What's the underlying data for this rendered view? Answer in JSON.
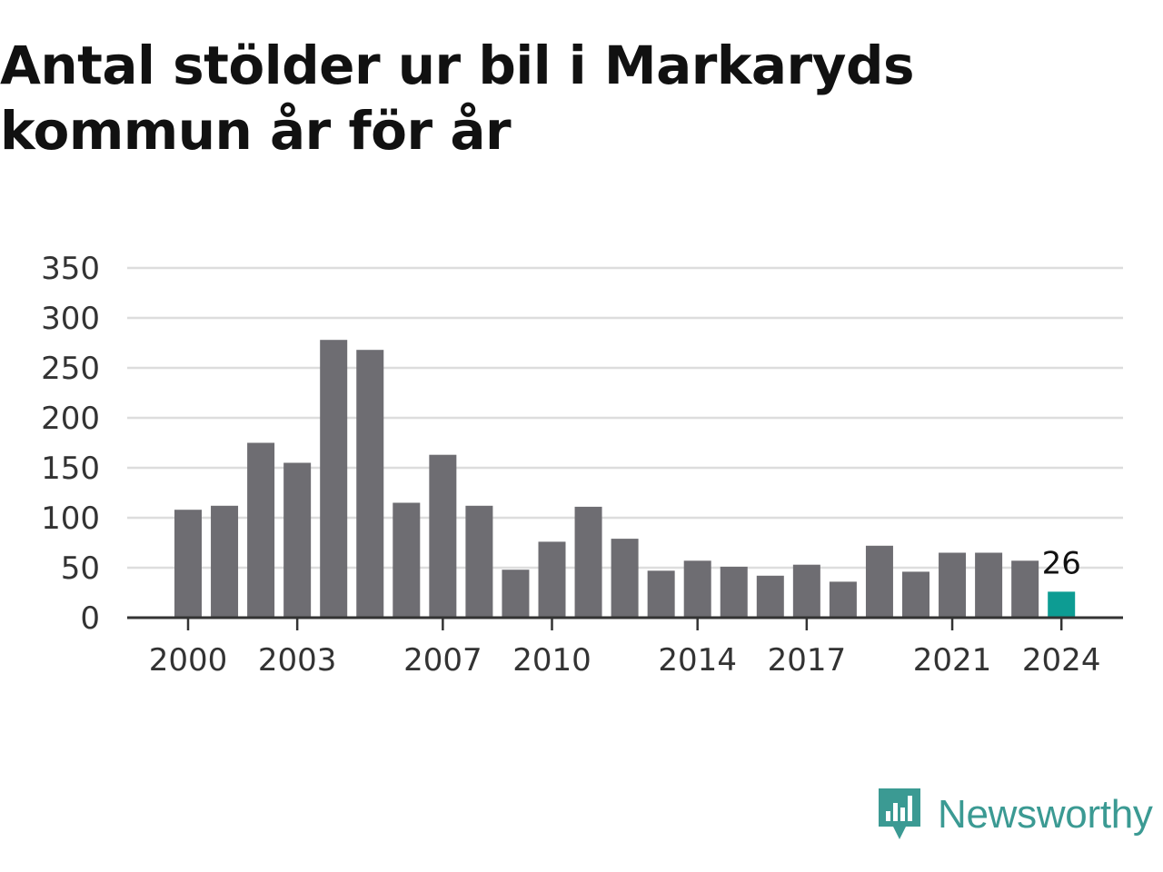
{
  "title": "Antal stölder ur bil i Markaryds kommun år för år",
  "brand": {
    "name": "Newsworthy",
    "icon": "newsworthy-logo-icon",
    "color": "#3b9a93"
  },
  "colors": {
    "bar": "#6e6d72",
    "highlight": "#0d9c93",
    "grid": "#dddddd",
    "axis": "#333333"
  },
  "chart_data": {
    "type": "bar",
    "title": "Antal stölder ur bil i Markaryds kommun år för år",
    "xlabel": "",
    "ylabel": "",
    "categories": [
      "2000",
      "2001",
      "2002",
      "2003",
      "2004",
      "2005",
      "2006",
      "2007",
      "2008",
      "2009",
      "2010",
      "2011",
      "2012",
      "2013",
      "2014",
      "2015",
      "2016",
      "2017",
      "2018",
      "2019",
      "2020",
      "2021",
      "2022",
      "2023",
      "2024"
    ],
    "values": [
      108,
      112,
      175,
      155,
      278,
      268,
      115,
      163,
      112,
      48,
      76,
      111,
      79,
      47,
      57,
      51,
      42,
      53,
      36,
      72,
      46,
      65,
      65,
      57,
      26
    ],
    "ylim": [
      0,
      350
    ],
    "yticks": [
      "0",
      "50",
      "100",
      "150",
      "200",
      "250",
      "300",
      "350"
    ],
    "xticks": [
      "2000",
      "2003",
      "2007",
      "2010",
      "2014",
      "2017",
      "2021",
      "2024"
    ],
    "highlight_category": "2024",
    "annotations": [
      {
        "category": "2024",
        "text": "26"
      }
    ],
    "grid": true,
    "legend": "none"
  }
}
